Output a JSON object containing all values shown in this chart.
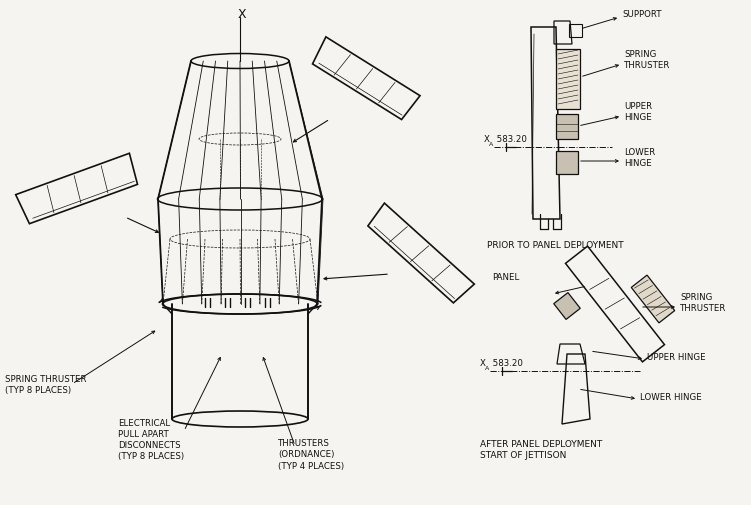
{
  "bg_color": "#f5f4f0",
  "line_color": "#111111",
  "font_size": 6.2,
  "labels": {
    "x_axis": "X",
    "spring_thruster_left": "SPRING THRUSTER\n(TYP 8 PLACES)",
    "electrical": "ELECTRICAL\nPULL APART\nDISCONNECTS\n(TYP 8 PLACES)",
    "thrusters": "THRUSTERS\n(ORDNANCE)\n(TYP 4 PLACES)",
    "support": "SUPPORT",
    "spring_thruster_r": "SPRING\nTHRUSTER",
    "upper_hinge": "UPPER\nHINGE",
    "lower_hinge": "LOWER\nHINGE",
    "prior_label": "PRIOR TO PANEL DEPLOYMENT",
    "panel": "PANEL",
    "spring_thruster_r2": "SPRING\nTHRUSTER",
    "upper_hinge2": "UPPER HINGE",
    "lower_hinge2": "LOWER HINGE",
    "after_label": "AFTER PANEL DEPLOYMENT\nSTART OF JETTISON"
  }
}
